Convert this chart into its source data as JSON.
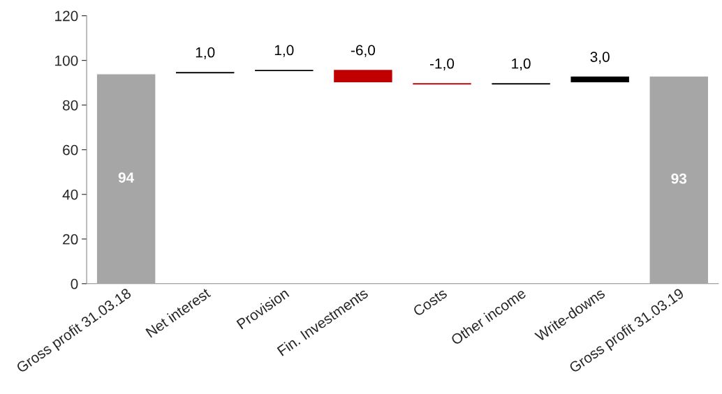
{
  "chart_data": {
    "type": "bar",
    "categories": [
      "Gross profit 31.03.18",
      "Net interest",
      "Provision",
      "Fin. Investments",
      "Costs",
      "Other income",
      "Write-downs",
      "Gross profit 31.03.19"
    ],
    "base": [
      0,
      94,
      95,
      96,
      90,
      89,
      90,
      0
    ],
    "values": [
      94,
      1,
      1,
      -6,
      -1,
      1,
      3,
      93
    ],
    "colors": [
      "#a6a6a6",
      "#000000",
      "#000000",
      "#c00000",
      "#c00000",
      "#000000",
      "#000000",
      "#a6a6a6"
    ],
    "value_labels": [
      "94",
      "1,0",
      "1,0",
      "-6,0",
      "-1,0",
      "1,0",
      "3,0",
      "93"
    ],
    "ylim": [
      0,
      120
    ],
    "yticks": [
      0,
      20,
      40,
      60,
      80,
      100,
      120
    ],
    "grid": false,
    "legend": false
  }
}
